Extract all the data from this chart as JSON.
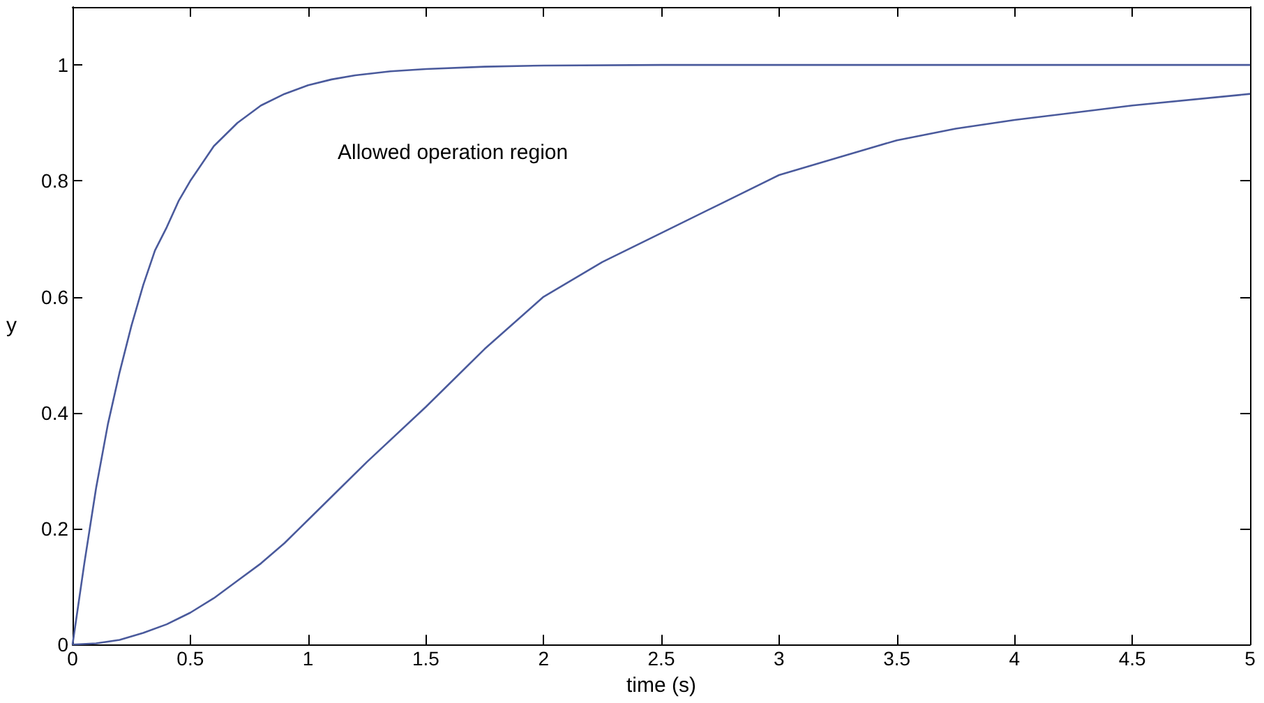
{
  "chart_data": {
    "type": "line",
    "xlabel": "time (s)",
    "ylabel": "y",
    "annotations": [
      "Allowed operation region"
    ],
    "series": [
      {
        "color": "#4a5a9c",
        "x": [
          0,
          0.05,
          0.1,
          0.15,
          0.2,
          0.25,
          0.3,
          0.35,
          0.4,
          0.45,
          0.5,
          0.6,
          0.7,
          0.8,
          0.9,
          1.0,
          1.1,
          1.2,
          1.35,
          1.5,
          1.75,
          2,
          2.5,
          3,
          4,
          5
        ],
        "values": [
          0,
          0.14,
          0.27,
          0.38,
          0.47,
          0.55,
          0.62,
          0.68,
          0.72,
          0.765,
          0.8,
          0.86,
          0.9,
          0.93,
          0.95,
          0.965,
          0.975,
          0.982,
          0.989,
          0.993,
          0.997,
          0.999,
          1,
          1,
          1,
          1
        ]
      },
      {
        "color": "#4a5a9c",
        "x": [
          0,
          0.1,
          0.2,
          0.3,
          0.4,
          0.5,
          0.6,
          0.7,
          0.8,
          0.9,
          1.0,
          1.25,
          1.5,
          1.75,
          2,
          2.25,
          2.5,
          2.75,
          3,
          3.25,
          3.5,
          3.75,
          4,
          4.5,
          5
        ],
        "values": [
          0,
          0.002,
          0.008,
          0.02,
          0.035,
          0.055,
          0.08,
          0.11,
          0.14,
          0.175,
          0.215,
          0.315,
          0.41,
          0.51,
          0.6,
          0.66,
          0.71,
          0.76,
          0.81,
          0.84,
          0.87,
          0.89,
          0.905,
          0.93,
          0.95
        ]
      }
    ],
    "xlim": [
      0,
      5
    ],
    "xticks": [
      0,
      0.5,
      1,
      1.5,
      2,
      2.5,
      3,
      3.5,
      4,
      4.5,
      5
    ],
    "ylim": [
      0,
      1.1
    ],
    "yticks": [
      0,
      0.2,
      0.4,
      0.6,
      0.8,
      1
    ],
    "grid": false,
    "marker": "none",
    "line_style": "solid"
  }
}
